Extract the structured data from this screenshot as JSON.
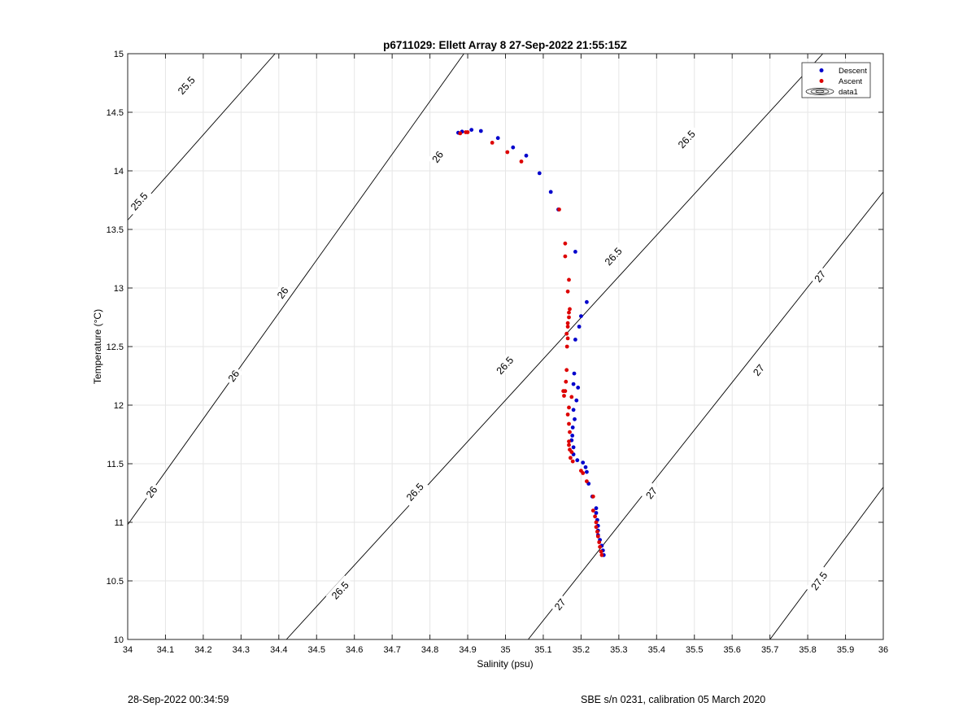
{
  "chart_data": {
    "type": "scatter",
    "title": "p6711029: Ellett Array 8 27-Sep-2022 21:55:15Z",
    "xlabel": "Salinity (psu)",
    "ylabel": "Temperature (°C)",
    "xlim": [
      34,
      36
    ],
    "ylim": [
      10,
      15
    ],
    "xticks": [
      34,
      34.1,
      34.2,
      34.3,
      34.4,
      34.5,
      34.6,
      34.7,
      34.8,
      34.9,
      35,
      35.1,
      35.2,
      35.3,
      35.4,
      35.5,
      35.6,
      35.7,
      35.8,
      35.9,
      36
    ],
    "xtick_labels": [
      "34",
      "34.1",
      "34.2",
      "34.3",
      "34.4",
      "34.5",
      "34.6",
      "34.7",
      "34.8",
      "34.9",
      "35",
      "35.1",
      "35.2",
      "35.3",
      "35.4",
      "35.5",
      "35.6",
      "35.7",
      "35.8",
      "35.9",
      "36"
    ],
    "yticks": [
      10,
      10.5,
      11,
      11.5,
      12,
      12.5,
      13,
      13.5,
      14,
      14.5,
      15
    ],
    "ytick_labels": [
      "10",
      "10.5",
      "11",
      "11.5",
      "12",
      "12.5",
      "13",
      "13.5",
      "14",
      "14.5",
      "15"
    ],
    "grid": true,
    "legend_position": "top-right",
    "legend": [
      "Descent",
      "Ascent",
      "data1"
    ],
    "colors": {
      "descent": "#0000cc",
      "ascent": "#dd0000",
      "contour": "#000000",
      "grid": "#e6e6e6"
    },
    "contours": [
      {
        "level": "25.5",
        "lines": [
          [
            [
              34.0,
              13.58
            ],
            [
              34.39,
              15.0
            ]
          ]
        ],
        "labels": [
          {
            "x": 34.155,
            "y": 14.73
          },
          {
            "x": 34.03,
            "y": 13.74
          }
        ]
      },
      {
        "level": "26",
        "lines": [
          [
            [
              34.0,
              10.98
            ],
            [
              34.89,
              15.0
            ]
          ]
        ],
        "labels": [
          {
            "x": 34.41,
            "y": 12.96
          },
          {
            "x": 34.28,
            "y": 12.25
          },
          {
            "x": 34.82,
            "y": 14.12
          },
          {
            "x": 34.063,
            "y": 11.26
          }
        ]
      },
      {
        "level": "26.5",
        "lines": [
          [
            [
              34.42,
              10.0
            ],
            [
              35.84,
              15.0
            ]
          ]
        ],
        "labels": [
          {
            "x": 34.998,
            "y": 12.34
          },
          {
            "x": 35.285,
            "y": 13.27
          },
          {
            "x": 34.562,
            "y": 10.42
          },
          {
            "x": 34.76,
            "y": 11.26
          },
          {
            "x": 35.479,
            "y": 14.27
          }
        ]
      },
      {
        "level": "27",
        "lines": [
          [
            [
              35.06,
              10.0
            ],
            [
              36.0,
              13.82
            ]
          ]
        ],
        "labels": [
          {
            "x": 35.386,
            "y": 11.25
          },
          {
            "x": 35.67,
            "y": 12.3
          },
          {
            "x": 35.144,
            "y": 10.3
          },
          {
            "x": 35.832,
            "y": 13.1
          }
        ]
      },
      {
        "level": "27.5",
        "lines": [
          [
            [
              35.7,
              10.0
            ],
            [
              36.0,
              11.3
            ]
          ]
        ],
        "labels": [
          {
            "x": 35.83,
            "y": 10.5
          }
        ]
      }
    ],
    "series": [
      {
        "name": "Descent",
        "points": [
          [
            34.875,
            14.325
          ],
          [
            34.885,
            14.335
          ],
          [
            34.91,
            14.35
          ],
          [
            34.935,
            14.34
          ],
          [
            34.98,
            14.28
          ],
          [
            35.02,
            14.2
          ],
          [
            35.055,
            14.13
          ],
          [
            35.09,
            13.98
          ],
          [
            35.12,
            13.82
          ],
          [
            35.14,
            13.67
          ],
          [
            35.185,
            13.31
          ],
          [
            35.215,
            12.88
          ],
          [
            35.2,
            12.76
          ],
          [
            35.195,
            12.67
          ],
          [
            35.185,
            12.56
          ],
          [
            35.182,
            12.27
          ],
          [
            35.18,
            12.18
          ],
          [
            35.192,
            12.15
          ],
          [
            35.188,
            12.04
          ],
          [
            35.18,
            11.96
          ],
          [
            35.183,
            11.88
          ],
          [
            35.178,
            11.81
          ],
          [
            35.177,
            11.74
          ],
          [
            35.175,
            11.7
          ],
          [
            35.18,
            11.64
          ],
          [
            35.18,
            11.58
          ],
          [
            35.19,
            11.53
          ],
          [
            35.205,
            11.51
          ],
          [
            35.212,
            11.47
          ],
          [
            35.215,
            11.43
          ],
          [
            35.22,
            11.33
          ],
          [
            35.23,
            11.22
          ],
          [
            35.24,
            11.12
          ],
          [
            35.24,
            11.08
          ],
          [
            35.243,
            11.02
          ],
          [
            35.245,
            10.97
          ],
          [
            35.245,
            10.93
          ],
          [
            35.245,
            10.89
          ],
          [
            35.25,
            10.85
          ],
          [
            35.255,
            10.8
          ],
          [
            35.258,
            10.76
          ],
          [
            35.26,
            10.72
          ]
        ]
      },
      {
        "name": "Ascent",
        "points": [
          [
            34.88,
            14.32
          ],
          [
            34.895,
            14.33
          ],
          [
            34.9,
            14.33
          ],
          [
            34.965,
            14.24
          ],
          [
            35.005,
            14.16
          ],
          [
            35.042,
            14.08
          ],
          [
            35.142,
            13.67
          ],
          [
            35.158,
            13.38
          ],
          [
            35.158,
            13.27
          ],
          [
            35.168,
            13.07
          ],
          [
            35.165,
            12.97
          ],
          [
            35.17,
            12.82
          ],
          [
            35.168,
            12.79
          ],
          [
            35.168,
            12.75
          ],
          [
            35.165,
            12.7
          ],
          [
            35.165,
            12.67
          ],
          [
            35.162,
            12.61
          ],
          [
            35.165,
            12.57
          ],
          [
            35.163,
            12.5
          ],
          [
            35.162,
            12.3
          ],
          [
            35.16,
            12.2
          ],
          [
            35.158,
            12.12
          ],
          [
            35.153,
            12.12
          ],
          [
            35.155,
            12.08
          ],
          [
            35.175,
            12.07
          ],
          [
            35.168,
            11.98
          ],
          [
            35.165,
            11.92
          ],
          [
            35.168,
            11.84
          ],
          [
            35.17,
            11.77
          ],
          [
            35.168,
            11.69
          ],
          [
            35.168,
            11.66
          ],
          [
            35.17,
            11.62
          ],
          [
            35.175,
            11.6
          ],
          [
            35.172,
            11.55
          ],
          [
            35.178,
            11.52
          ],
          [
            35.2,
            11.44
          ],
          [
            35.205,
            11.42
          ],
          [
            35.215,
            11.35
          ],
          [
            35.232,
            11.22
          ],
          [
            35.232,
            11.1
          ],
          [
            35.237,
            11.05
          ],
          [
            35.24,
            11.0
          ],
          [
            35.24,
            10.96
          ],
          [
            35.243,
            10.92
          ],
          [
            35.245,
            10.88
          ],
          [
            35.248,
            10.83
          ],
          [
            35.25,
            10.79
          ],
          [
            35.253,
            10.75
          ],
          [
            35.255,
            10.72
          ]
        ]
      }
    ]
  },
  "footer": {
    "left": "28-Sep-2022 00:34:59",
    "right": "SBE s/n 0231, calibration 05 March 2020"
  }
}
